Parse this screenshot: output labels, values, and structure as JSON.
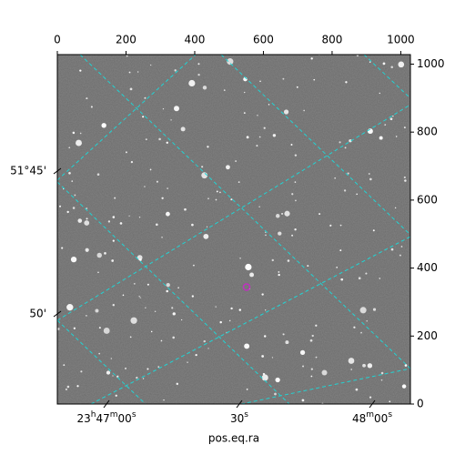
{
  "chart_data": {
    "type": "image",
    "xlabel": "pos.eq.ra",
    "xlim": [
      0,
      1028
    ],
    "ylim": [
      0,
      1028
    ],
    "xticks": [
      0,
      200,
      400,
      600,
      800,
      1000
    ],
    "yticks": [
      0,
      200,
      400,
      600,
      800,
      1000
    ],
    "ra_ticks": [
      "23h47m00s",
      "30s",
      "48m00s"
    ],
    "dec_ticks": [
      "51°45'",
      "50'"
    ],
    "markers": [
      {
        "x": 551,
        "y": 344,
        "color": "#c030c0"
      }
    ],
    "grid_color": "#22d3d3"
  }
}
